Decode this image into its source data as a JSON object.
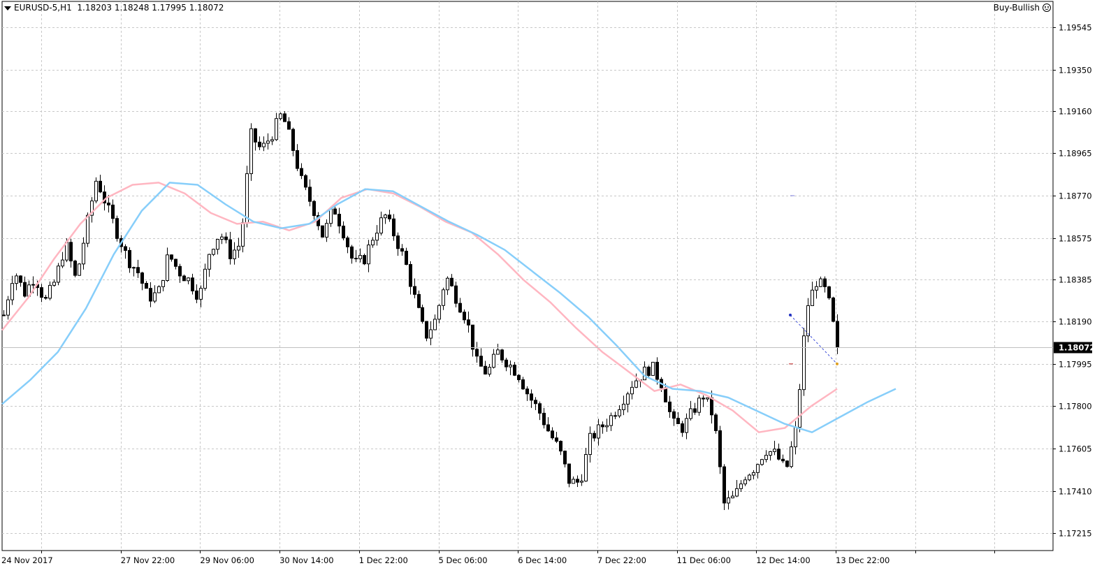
{
  "header": {
    "symbol": "EURUSD-5,H1",
    "ohlc": "1.18203 1.18248 1.17995 1.18072",
    "signal": "Buy-Bullish"
  },
  "colors": {
    "candle": "#000000",
    "ma_fast": "#ffb6c1",
    "ma_slow": "#87cefa",
    "grid": "#c8c8c8",
    "price_label_bg": "#000000",
    "price_label_text": "#ffffff"
  },
  "chart_data": {
    "type": "line",
    "title": "EURUSD-5,H1",
    "ylim": [
      1.7135,
      1.9665
    ],
    "y_tick_labels": [
      "1.19545",
      "1.19350",
      "1.19160",
      "1.18965",
      "1.18770",
      "1.18575",
      "1.18385",
      "1.18190",
      "1.17995",
      "1.17800",
      "1.17605",
      "1.17410",
      "1.17215"
    ],
    "y_tick_values": [
      1.9545,
      1.935,
      1.916,
      1.8965,
      1.877,
      1.8575,
      1.8385,
      1.819,
      1.7995,
      1.78,
      1.7605,
      1.741,
      1.7215
    ],
    "x_tick_labels": [
      "24 Nov 2017",
      "27 Nov 22:00",
      "29 Nov 06:00",
      "30 Nov 14:00",
      "1 Dec 22:00",
      "5 Dec 06:00",
      "6 Dec 14:00",
      "7 Dec 22:00",
      "11 Dec 06:00",
      "12 Dec 14:00",
      "13 Dec 22:00"
    ],
    "current_price": "1.18072",
    "current_price_value": 1.8072,
    "grid": true,
    "close_series": [
      {
        "x": "24 Nov 2017",
        "y": 1.822
      },
      {
        "x": "",
        "y": 1.843
      },
      {
        "x": "",
        "y": 1.832
      },
      {
        "x": "",
        "y": 1.84
      },
      {
        "x": "",
        "y": 1.828
      },
      {
        "x": "",
        "y": 1.838
      },
      {
        "x": "",
        "y": 1.855
      },
      {
        "x": "",
        "y": 1.838
      },
      {
        "x": "27 Nov 22:00",
        "y": 1.862
      },
      {
        "x": "",
        "y": 1.885
      },
      {
        "x": "",
        "y": 1.872
      },
      {
        "x": "",
        "y": 1.86
      },
      {
        "x": "",
        "y": 1.848
      },
      {
        "x": "",
        "y": 1.842
      },
      {
        "x": "",
        "y": 1.83
      },
      {
        "x": "",
        "y": 1.832
      },
      {
        "x": "29 Nov 06:00",
        "y": 1.85
      },
      {
        "x": "",
        "y": 1.842
      },
      {
        "x": "",
        "y": 1.838
      },
      {
        "x": "",
        "y": 1.83
      },
      {
        "x": "",
        "y": 1.852
      },
      {
        "x": "",
        "y": 1.86
      },
      {
        "x": "",
        "y": 1.85
      },
      {
        "x": "",
        "y": 1.855
      },
      {
        "x": "30 Nov 14:00",
        "y": 1.905
      },
      {
        "x": "",
        "y": 1.898
      },
      {
        "x": "",
        "y": 1.905
      },
      {
        "x": "",
        "y": 1.915
      },
      {
        "x": "",
        "y": 1.9
      },
      {
        "x": "",
        "y": 1.882
      },
      {
        "x": "",
        "y": 1.872
      },
      {
        "x": "",
        "y": 1.858
      },
      {
        "x": "1 Dec 22:00",
        "y": 1.872
      },
      {
        "x": "",
        "y": 1.86
      },
      {
        "x": "",
        "y": 1.845
      },
      {
        "x": "",
        "y": 1.848
      },
      {
        "x": "",
        "y": 1.86
      },
      {
        "x": "",
        "y": 1.868
      },
      {
        "x": "",
        "y": 1.858
      },
      {
        "x": "",
        "y": 1.846
      },
      {
        "x": "5 Dec 06:00",
        "y": 1.828
      },
      {
        "x": "",
        "y": 1.812
      },
      {
        "x": "",
        "y": 1.82
      },
      {
        "x": "",
        "y": 1.84
      },
      {
        "x": "",
        "y": 1.83
      },
      {
        "x": "",
        "y": 1.82
      },
      {
        "x": "",
        "y": 1.8
      },
      {
        "x": "",
        "y": 1.795
      },
      {
        "x": "6 Dec 14:00",
        "y": 1.805
      },
      {
        "x": "",
        "y": 1.8
      },
      {
        "x": "",
        "y": 1.795
      },
      {
        "x": "",
        "y": 1.785
      },
      {
        "x": "",
        "y": 1.778
      },
      {
        "x": "",
        "y": 1.768
      },
      {
        "x": "",
        "y": 1.76
      },
      {
        "x": "",
        "y": 1.745
      },
      {
        "x": "7 Dec 22:00",
        "y": 1.745
      },
      {
        "x": "",
        "y": 1.765
      },
      {
        "x": "",
        "y": 1.77
      },
      {
        "x": "",
        "y": 1.775
      },
      {
        "x": "",
        "y": 1.782
      },
      {
        "x": "",
        "y": 1.79
      },
      {
        "x": "",
        "y": 1.795
      },
      {
        "x": "",
        "y": 1.798
      },
      {
        "x": "11 Dec 06:00",
        "y": 1.79
      },
      {
        "x": "",
        "y": 1.772
      },
      {
        "x": "",
        "y": 1.77
      },
      {
        "x": "",
        "y": 1.778
      },
      {
        "x": "",
        "y": 1.785
      },
      {
        "x": "",
        "y": 1.775
      },
      {
        "x": "",
        "y": 1.735
      },
      {
        "x": "",
        "y": 1.738
      },
      {
        "x": "12 Dec 14:00",
        "y": 1.748
      },
      {
        "x": "",
        "y": 1.752
      },
      {
        "x": "",
        "y": 1.76
      },
      {
        "x": "",
        "y": 1.758
      },
      {
        "x": "",
        "y": 1.75
      },
      {
        "x": "",
        "y": 1.77
      },
      {
        "x": "",
        "y": 1.825
      },
      {
        "x": "",
        "y": 1.838
      },
      {
        "x": "13 Dec 22:00",
        "y": 1.832
      },
      {
        "x": "",
        "y": 1.8072
      }
    ],
    "series": [
      {
        "values": [
          1.815,
          1.83,
          1.848,
          1.864,
          1.876,
          1.882,
          1.883,
          1.878,
          1.869,
          1.864,
          1.865,
          1.861,
          1.865,
          1.876,
          1.88,
          1.878,
          1.872,
          1.865,
          1.86,
          1.85,
          1.838,
          1.828,
          1.816,
          1.805,
          1.796,
          1.787,
          1.79,
          1.785,
          1.778,
          1.768,
          1.77,
          1.78,
          1.788
        ]
      },
      {
        "values": [
          1.781,
          1.792,
          1.805,
          1.825,
          1.85,
          1.87,
          1.883,
          1.882,
          1.873,
          1.865,
          1.862,
          1.864,
          1.873,
          1.88,
          1.879,
          1.872,
          1.865,
          1.859,
          1.852,
          1.842,
          1.832,
          1.821,
          1.808,
          1.794,
          1.788,
          1.787,
          1.784,
          1.778,
          1.772,
          1.768,
          1.775,
          1.782,
          1.788
        ]
      }
    ]
  }
}
